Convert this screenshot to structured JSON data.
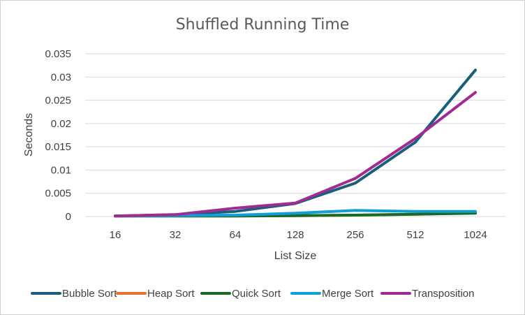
{
  "chart_data": {
    "type": "line",
    "title": "Shuffled Running Time",
    "xlabel": "List Size",
    "ylabel": "Seconds",
    "categories": [
      "16",
      "32",
      "64",
      "128",
      "256",
      "512",
      "1024"
    ],
    "yticks": [
      "0",
      "0.005",
      "0.01",
      "0.015",
      "0.02",
      "0.025",
      "0.03",
      "0.035"
    ],
    "ylim": [
      0,
      0.035
    ],
    "grid": true,
    "legend_position": "bottom",
    "series": [
      {
        "name": "Bubble Sort",
        "color": "#1a5f7a",
        "values": [
          0.0001,
          0.0004,
          0.0011,
          0.0028,
          0.0072,
          0.016,
          0.0315
        ]
      },
      {
        "name": "Heap Sort",
        "color": "#e97132",
        "values": [
          0.0001,
          0.0001,
          0.0001,
          0.0002,
          0.0003,
          0.0005,
          0.0008
        ]
      },
      {
        "name": "Quick Sort",
        "color": "#196b24",
        "values": [
          0.0001,
          0.0001,
          0.0001,
          0.0002,
          0.0003,
          0.0005,
          0.0007
        ]
      },
      {
        "name": "Merge Sort",
        "color": "#0f9ed5",
        "values": [
          0.0001,
          0.0002,
          0.0003,
          0.0007,
          0.0013,
          0.0011,
          0.0011
        ]
      },
      {
        "name": "Transposition",
        "color": "#a02b93",
        "values": [
          0.0001,
          0.0004,
          0.0018,
          0.0029,
          0.0082,
          0.0168,
          0.0267
        ]
      }
    ]
  }
}
